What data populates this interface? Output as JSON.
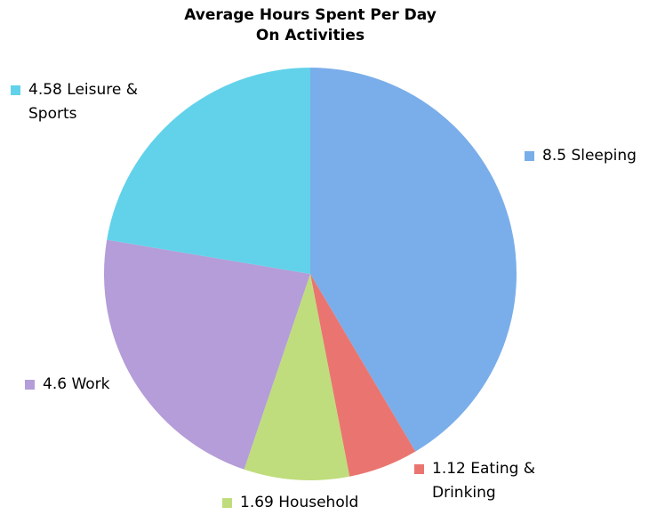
{
  "chart_data": {
    "type": "pie",
    "title": "Average Hours Spent Per Day On Activities",
    "categories": [
      "Sleeping",
      "Eating & Drinking",
      "Household",
      "Work",
      "Leisure & Sports"
    ],
    "values": [
      8.5,
      1.12,
      1.69,
      4.6,
      4.58
    ],
    "colors": [
      "#7aaeea",
      "#ea7570",
      "#bfdd7c",
      "#b49dd8",
      "#62d2ea"
    ]
  }
}
